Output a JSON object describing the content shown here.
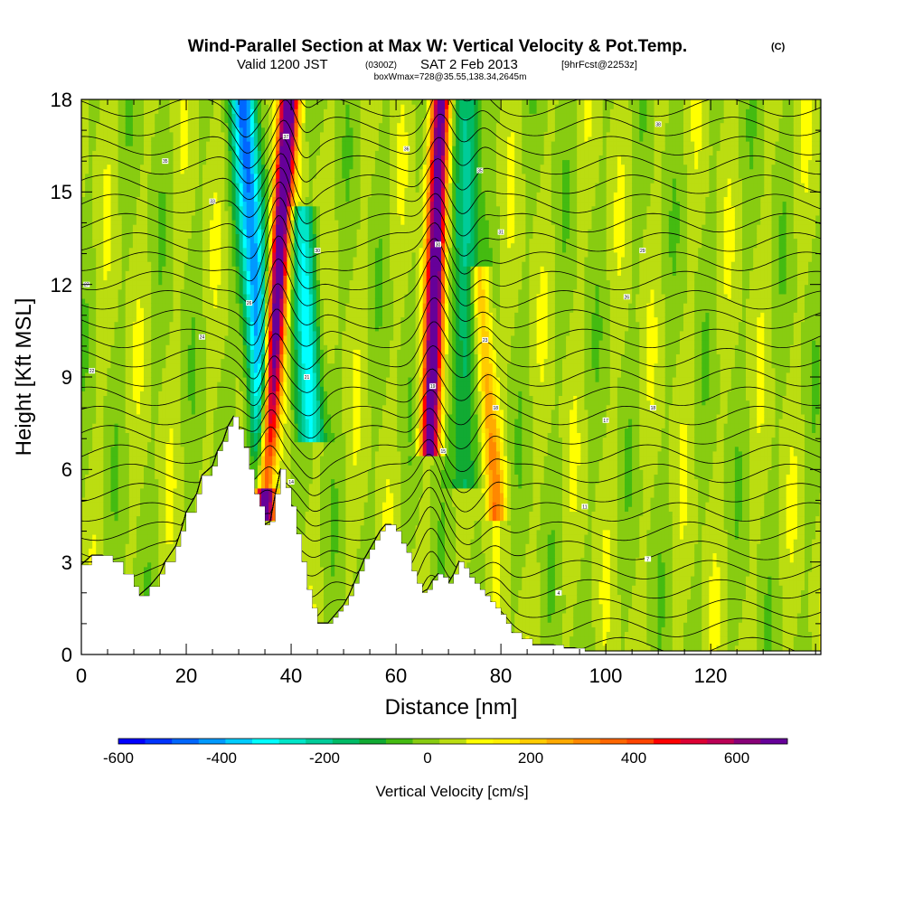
{
  "chart_data": {
    "type": "heatmap",
    "title": "Wind-Parallel Section at Max W: Vertical Velocity & Pot.Temp.",
    "title_mark": "(C)",
    "subtitle": {
      "valid": "Valid 1200 JST",
      "utc": "(0300Z)",
      "date": "SAT 2 Feb 2013",
      "forecast": "[9hrFcst@2253z]"
    },
    "box_info": "boxWmax=728@35.55,138.34,2645m",
    "xlabel": "Distance [nm]",
    "ylabel": "Height [Kft MSL]",
    "xlim": [
      0,
      141
    ],
    "ylim": [
      0,
      18
    ],
    "xticks": [
      "0",
      "20",
      "40",
      "60",
      "80",
      "100",
      "120"
    ],
    "yticks": [
      "0",
      "3",
      "6",
      "9",
      "12",
      "15",
      "18"
    ],
    "colorbar": {
      "label": "Vertical Velocity [cm/s]",
      "ticks": [
        "-600",
        "-400",
        "-200",
        "0",
        "200",
        "400",
        "600"
      ],
      "range": [
        -650,
        700
      ],
      "colors": [
        "#0000ff",
        "#0033ff",
        "#0066ff",
        "#0099ff",
        "#00ccff",
        "#00ffff",
        "#00e6c8",
        "#00cc99",
        "#00bb66",
        "#11aa33",
        "#44bb11",
        "#88cc11",
        "#bbdd11",
        "#ffff00",
        "#ffee00",
        "#ffcc00",
        "#ffaa00",
        "#ff8800",
        "#ff6600",
        "#ff4400",
        "#ff0000",
        "#dd0033",
        "#bb0055",
        "#880077",
        "#660099"
      ]
    },
    "updraft_bands": [
      {
        "x_base": 35,
        "h_base": 5,
        "x_top": 39.5,
        "h_top": 18,
        "w": 800
      },
      {
        "x_base": 66.5,
        "h_base": 7,
        "x_top": 68.5,
        "h_top": 18,
        "w": 720
      },
      {
        "x_base": 79,
        "h_base": 5,
        "x_top": 76,
        "h_top": 12,
        "w": 280
      }
    ],
    "downdraft_bands": [
      {
        "x_base": 35,
        "h_base": 6,
        "x_top": 31,
        "h_top": 18,
        "w": -480
      },
      {
        "x_base": 44,
        "h_base": 7.5,
        "x_top": 42,
        "h_top": 14,
        "w": -320
      },
      {
        "x_base": 73,
        "h_base": 6,
        "x_top": 74,
        "h_top": 18,
        "w": -220
      }
    ],
    "terrain": {
      "x": [
        0,
        2,
        4,
        6,
        8,
        10,
        11,
        13,
        15,
        16,
        18,
        19,
        20,
        22,
        23,
        25,
        26,
        27,
        28,
        29,
        30,
        31,
        32,
        33,
        34,
        35,
        36,
        37,
        38,
        39,
        40,
        41,
        42,
        43,
        44,
        45,
        46,
        47,
        48,
        49,
        50,
        51,
        52,
        53,
        54,
        55,
        56,
        57,
        58,
        59,
        60,
        61,
        62,
        63,
        64,
        65,
        66,
        67,
        68,
        69,
        70,
        71,
        72,
        73,
        74,
        75,
        76,
        77,
        78,
        79,
        80,
        81,
        82,
        84,
        86,
        88,
        90,
        92,
        94,
        96,
        98,
        100,
        105,
        110,
        115,
        120,
        125,
        130,
        135,
        141
      ],
      "h": [
        2.9,
        3.2,
        3.2,
        3.0,
        2.6,
        2.2,
        1.9,
        2.2,
        2.6,
        3.0,
        3.5,
        4.0,
        4.6,
        5.2,
        5.8,
        6.1,
        6.6,
        6.9,
        7.4,
        7.7,
        7.3,
        6.7,
        6.0,
        5.2,
        4.8,
        4.2,
        4.3,
        5.2,
        6.0,
        5.4,
        4.8,
        3.9,
        3.0,
        2.1,
        1.5,
        1.0,
        1.0,
        1.0,
        1.2,
        1.4,
        1.6,
        1.9,
        2.3,
        2.7,
        3.1,
        3.4,
        3.7,
        4.0,
        4.2,
        4.2,
        4.0,
        3.6,
        3.3,
        2.7,
        2.3,
        2.0,
        2.1,
        2.4,
        2.6,
        2.5,
        2.3,
        2.6,
        3.0,
        2.8,
        2.5,
        2.3,
        2.1,
        1.9,
        1.7,
        1.5,
        1.3,
        1.0,
        0.7,
        0.5,
        0.3,
        0.3,
        0.3,
        0.2,
        0.2,
        0.1,
        0.1,
        0.1,
        0.1,
        0.1,
        0.1,
        0.1,
        0.1,
        0.1,
        0.1,
        0.1
      ]
    },
    "isentropes": {
      "levels": 32,
      "contour_labels": [
        {
          "x": 1,
          "h": 12.0,
          "text": "27"
        },
        {
          "x": 2,
          "h": 9.2,
          "text": "22"
        },
        {
          "x": 16,
          "h": 16.0,
          "text": "35"
        },
        {
          "x": 25,
          "h": 14.7,
          "text": "33"
        },
        {
          "x": 23,
          "h": 10.3,
          "text": "24"
        },
        {
          "x": 32,
          "h": 11.4,
          "text": "26"
        },
        {
          "x": 39,
          "h": 16.8,
          "text": "37"
        },
        {
          "x": 45,
          "h": 13.1,
          "text": "30"
        },
        {
          "x": 43,
          "h": 9.0,
          "text": "21"
        },
        {
          "x": 40,
          "h": 5.6,
          "text": "14"
        },
        {
          "x": 62,
          "h": 16.4,
          "text": "36"
        },
        {
          "x": 68,
          "h": 13.3,
          "text": "30"
        },
        {
          "x": 67,
          "h": 8.7,
          "text": "19"
        },
        {
          "x": 69,
          "h": 6.6,
          "text": "15"
        },
        {
          "x": 76,
          "h": 15.7,
          "text": "35"
        },
        {
          "x": 80,
          "h": 13.7,
          "text": "31"
        },
        {
          "x": 77,
          "h": 10.2,
          "text": "23"
        },
        {
          "x": 79,
          "h": 8.0,
          "text": "18"
        },
        {
          "x": 96,
          "h": 4.8,
          "text": "11"
        },
        {
          "x": 100,
          "h": 7.6,
          "text": "17"
        },
        {
          "x": 104,
          "h": 11.6,
          "text": "26"
        },
        {
          "x": 107,
          "h": 13.1,
          "text": "29"
        },
        {
          "x": 110,
          "h": 17.2,
          "text": "38"
        },
        {
          "x": 108,
          "h": 3.1,
          "text": "7"
        },
        {
          "x": 91,
          "h": 2.0,
          "text": "4"
        },
        {
          "x": 109,
          "h": 8.0,
          "text": "18"
        }
      ]
    }
  }
}
